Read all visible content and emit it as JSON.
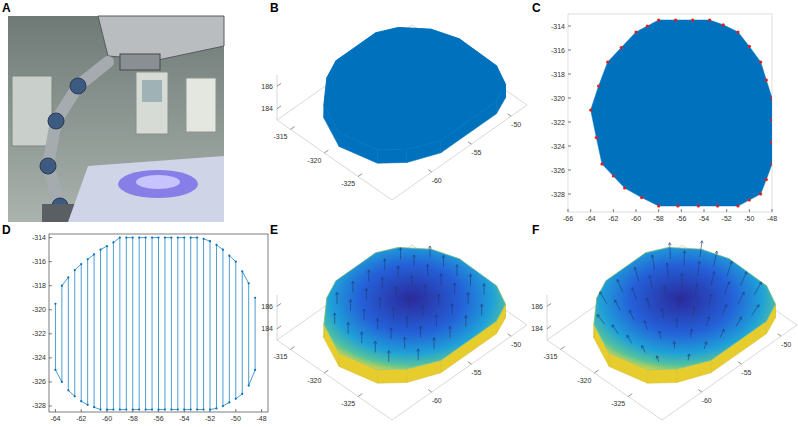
{
  "chart_data": [
    {
      "title": "A",
      "type": "image"
    },
    {
      "title": "B",
      "type": "surface",
      "color": "#0072bd",
      "xlim": [
        -65,
        -48
      ],
      "ylim": [
        -330,
        -313
      ],
      "zlim": [
        183,
        187
      ],
      "xticks": [
        -60,
        -55,
        -50
      ],
      "yticks": [
        -325,
        -320,
        -315
      ],
      "zticks": [
        184,
        186
      ],
      "x": [
        -58,
        -53,
        -51,
        -49,
        -48,
        -48,
        -49,
        -51,
        -58,
        -61,
        -63,
        -64,
        -62.5,
        -60
      ],
      "y": [
        -313.5,
        -313.5,
        -314.5,
        -317,
        -320,
        -325.5,
        -328,
        -329,
        -329,
        -327.5,
        -325.5,
        -321,
        -317,
        -314.5
      ],
      "z": [
        185,
        185,
        184.9,
        184.8,
        184.7,
        184.6,
        184.5,
        184.4,
        184.4,
        184.5,
        184.6,
        184.7,
        184.8,
        184.9
      ],
      "z_bottom": [
        183.8,
        183.8,
        183.7,
        183.6,
        183.5,
        183.4,
        183.3,
        183.3,
        183.3,
        183.3,
        183.4,
        183.5,
        183.6,
        183.7
      ]
    },
    {
      "title": "C",
      "type": "scatter",
      "xlim": [
        -66,
        -48
      ],
      "ylim": [
        -329.5,
        -313
      ],
      "xticks": [
        -66,
        -64,
        -62,
        -60,
        -58,
        -56,
        -54,
        -52,
        -50,
        -48
      ],
      "yticks": [
        -328,
        -326,
        -324,
        -322,
        -320,
        -318,
        -316,
        -314
      ],
      "series": [
        {
          "type": "area",
          "color": "#0072bd",
          "x": [
            -58,
            -56.5,
            -55,
            -53.5,
            -52.3,
            -51,
            -50,
            -49,
            -48.5,
            -48,
            -48,
            -48,
            -48,
            -48.5,
            -49,
            -50,
            -51,
            -52.8,
            -54.5,
            -56.3,
            -58,
            -59.5,
            -61,
            -62,
            -63,
            -63.5,
            -64,
            -63.3,
            -62.5,
            -61.3,
            -60,
            -59
          ],
          "y": [
            -313.5,
            -313.5,
            -313.5,
            -313.5,
            -313.9,
            -314.5,
            -315.7,
            -317,
            -318.5,
            -320,
            -321.8,
            -323.7,
            -325.5,
            -326.8,
            -328,
            -328.5,
            -329,
            -329,
            -329,
            -329,
            -329,
            -328.3,
            -327.5,
            -326.5,
            -325.5,
            -323.3,
            -321,
            -319,
            -317,
            -315.8,
            -314.5,
            -314
          ]
        },
        {
          "type": "scatter",
          "color": "#e0201b",
          "marker": "dot",
          "x": [
            -58,
            -56.5,
            -55,
            -53.5,
            -52.3,
            -51,
            -50,
            -49,
            -48.5,
            -48,
            -48,
            -48,
            -48,
            -48.5,
            -49,
            -50,
            -51,
            -52.8,
            -54.5,
            -56.3,
            -58,
            -59.5,
            -61,
            -62,
            -63,
            -63.5,
            -64,
            -63.3,
            -62.5,
            -61.3,
            -60,
            -59
          ],
          "y": [
            -313.5,
            -313.5,
            -313.5,
            -313.5,
            -313.9,
            -314.5,
            -315.7,
            -317,
            -318.5,
            -320,
            -321.8,
            -323.7,
            -325.5,
            -326.8,
            -328,
            -328.5,
            -329,
            -329,
            -329,
            -329,
            -329,
            -328.3,
            -327.5,
            -326.5,
            -325.5,
            -323.3,
            -321,
            -319,
            -317,
            -315.8,
            -314.5,
            -314
          ]
        }
      ]
    },
    {
      "title": "D",
      "type": "line",
      "color": "#0072bd",
      "marker": "dot",
      "xlim": [
        -64.5,
        -47.5
      ],
      "ylim": [
        -328.5,
        -313.7
      ],
      "xticks": [
        -64,
        -62,
        -60,
        -58,
        -56,
        -54,
        -52,
        -50,
        -48
      ],
      "yticks": [
        -328,
        -326,
        -324,
        -322,
        -320,
        -318,
        -316,
        -314
      ],
      "x": [
        -64,
        -64,
        -63.5,
        -63.5,
        -63,
        -63,
        -62.5,
        -62.5,
        -62,
        -62,
        -61.5,
        -61.5,
        -61,
        -61,
        -60.5,
        -60.5,
        -60,
        -60,
        -59.5,
        -59.5,
        -59,
        -59,
        -58.5,
        -58.5,
        -58,
        -58,
        -57.5,
        -57.5,
        -57,
        -57,
        -56.5,
        -56.5,
        -56,
        -56,
        -55.5,
        -55.5,
        -55,
        -55,
        -54.5,
        -54.5,
        -54,
        -54,
        -53.5,
        -53.5,
        -53,
        -53,
        -52.5,
        -52.5,
        -52,
        -52,
        -51.5,
        -51.5,
        -51,
        -51,
        -50.5,
        -50.5,
        -50,
        -50,
        -49.5,
        -49.5,
        -49,
        -49,
        -48.5,
        -48.5
      ],
      "y": [
        -319.5,
        -325,
        -326,
        -318,
        -317.3,
        -326.7,
        -327.2,
        -316.7,
        -316.2,
        -327.6,
        -327.9,
        -315.8,
        -315.4,
        -328.1,
        -328.3,
        -315,
        -314.7,
        -328.3,
        -328.3,
        -314.4,
        -314,
        -328.3,
        -328.3,
        -314,
        -314,
        -328.3,
        -328.3,
        -314,
        -314,
        -328.3,
        -328.3,
        -314,
        -314,
        -328.3,
        -328.3,
        -314,
        -314,
        -328.3,
        -328.3,
        -314,
        -314,
        -328.3,
        -328.3,
        -314,
        -314,
        -328.3,
        -328.3,
        -314.1,
        -314.3,
        -328.3,
        -328.2,
        -314.6,
        -315,
        -328,
        -327.7,
        -315.5,
        -316,
        -327.4,
        -327,
        -316.8,
        -317.8,
        -326.3,
        -325,
        -319
      ]
    },
    {
      "title": "E",
      "type": "quiver",
      "color": "#1f3a7a",
      "xlim": [
        -65,
        -48
      ],
      "ylim": [
        -330,
        -313
      ],
      "zlim": [
        183,
        187
      ],
      "xticks": [
        -60,
        -55,
        -50
      ],
      "yticks": [
        -325,
        -320,
        -315
      ],
      "zticks": [
        184,
        186
      ],
      "x": [
        -58,
        -53,
        -51,
        -49,
        -48,
        -48,
        -49,
        -51,
        -58,
        -61,
        -63,
        -64,
        -62.5,
        -60
      ],
      "y": [
        -313.5,
        -313.5,
        -314.5,
        -317,
        -320,
        -325.5,
        -328,
        -329,
        -329,
        -327.5,
        -325.5,
        -321,
        -317,
        -314.5
      ],
      "z": [
        185,
        185,
        184.9,
        184.8,
        184.7,
        184.6,
        184.5,
        184.4,
        184.4,
        184.5,
        184.6,
        184.7,
        184.8,
        184.9
      ],
      "z_bottom": [
        183.8,
        183.8,
        183.7,
        183.6,
        183.5,
        183.4,
        183.3,
        183.3,
        183.3,
        183.3,
        183.4,
        183.5,
        183.6,
        183.7
      ],
      "arrows": {
        "x": [
          -60,
          -58,
          -56,
          -54,
          -52,
          -62,
          -60,
          -58,
          -56,
          -54,
          -52,
          -50,
          -62,
          -60,
          -58,
          -56,
          -54,
          -52,
          -50,
          -62,
          -60,
          -58,
          -56,
          -54,
          -52,
          -50,
          -62,
          -60,
          -58,
          -56,
          -54,
          -52,
          -50,
          -62,
          -60,
          -58,
          -56,
          -54,
          -52,
          -50,
          -60,
          -58,
          -56,
          -54,
          -52
        ],
        "y": [
          -316,
          -316,
          -316,
          -316,
          -316,
          -318,
          -318,
          -318,
          -318,
          -318,
          -318,
          -318,
          -320,
          -320,
          -320,
          -320,
          -320,
          -320,
          -320,
          -322,
          -322,
          -322,
          -322,
          -322,
          -322,
          -322,
          -324,
          -324,
          -324,
          -324,
          -324,
          -324,
          -324,
          -326,
          -326,
          -326,
          -326,
          -326,
          -326,
          -326,
          -328,
          -328,
          -328,
          -328,
          -328
        ],
        "z": [
          185,
          185,
          185,
          185,
          185,
          185,
          185.2,
          185.2,
          185.2,
          185.2,
          185.2,
          185,
          185,
          185.2,
          185.2,
          185.2,
          185.2,
          185.2,
          185,
          185,
          185.2,
          185.2,
          185.2,
          185.2,
          185.2,
          185,
          185,
          185.2,
          185.2,
          185.2,
          185.2,
          185.2,
          185,
          185,
          185.2,
          185.2,
          185.2,
          185.2,
          185.2,
          185,
          185,
          185,
          185,
          185,
          185
        ],
        "u": [
          0,
          0,
          0,
          0,
          0,
          0,
          0,
          0,
          0,
          0,
          0,
          0,
          0,
          0,
          0,
          0,
          0,
          0,
          0,
          0,
          0,
          0,
          0,
          0,
          0,
          0,
          0,
          0,
          0,
          0,
          0,
          0,
          0,
          0,
          0,
          0,
          0,
          0,
          0,
          0,
          0,
          0,
          0,
          0,
          0
        ],
        "v": [
          0,
          0,
          0,
          0,
          0,
          0,
          0,
          0,
          0,
          0,
          0,
          0,
          0,
          0,
          0,
          0,
          0,
          0,
          0,
          0,
          0,
          0,
          0,
          0,
          0,
          0,
          0,
          0,
          0,
          0,
          0,
          0,
          0,
          0,
          0,
          0,
          0,
          0,
          0,
          0,
          0,
          0,
          0,
          0,
          0
        ],
        "w": [
          1,
          1,
          1,
          1,
          1,
          1,
          1,
          1,
          1,
          1,
          1,
          1,
          1,
          1,
          1,
          1,
          1,
          1,
          1,
          1,
          1,
          1,
          1,
          1,
          1,
          1,
          1,
          1,
          1,
          1,
          1,
          1,
          1,
          1,
          1,
          1,
          1,
          1,
          1,
          1,
          1,
          1,
          1,
          1,
          1
        ]
      }
    },
    {
      "title": "F",
      "type": "quiver",
      "color": "#1f3a7a",
      "xlim": [
        -65,
        -48
      ],
      "ylim": [
        -330,
        -313
      ],
      "zlim": [
        183,
        187
      ],
      "xticks": [
        -60,
        -55,
        -50
      ],
      "yticks": [
        -325,
        -320,
        -315
      ],
      "zticks": [
        184,
        186
      ],
      "x": [
        -58,
        -53,
        -51,
        -49,
        -48,
        -48,
        -49,
        -51,
        -58,
        -61,
        -63,
        -64,
        -62.5,
        -60
      ],
      "y": [
        -313.5,
        -313.5,
        -314.5,
        -317,
        -320,
        -325.5,
        -328,
        -329,
        -329,
        -327.5,
        -325.5,
        -321,
        -317,
        -314.5
      ],
      "z": [
        185,
        185,
        184.9,
        184.8,
        184.7,
        184.6,
        184.5,
        184.4,
        184.4,
        184.5,
        184.6,
        184.7,
        184.8,
        184.9
      ],
      "z_bottom": [
        183.8,
        183.8,
        183.7,
        183.6,
        183.5,
        183.4,
        183.3,
        183.3,
        183.3,
        183.3,
        183.4,
        183.5,
        183.6,
        183.7
      ],
      "arrows": {
        "x": [
          -60,
          -58,
          -56,
          -54,
          -52,
          -62,
          -60,
          -58,
          -56,
          -54,
          -52,
          -50,
          -62,
          -60,
          -58,
          -56,
          -54,
          -52,
          -50,
          -62,
          -60,
          -58,
          -56,
          -54,
          -52,
          -50,
          -62,
          -60,
          -58,
          -56,
          -54,
          -52,
          -50,
          -62,
          -60,
          -58,
          -56,
          -54,
          -52,
          -50,
          -60,
          -58,
          -56,
          -54,
          -52
        ],
        "y": [
          -316,
          -316,
          -316,
          -316,
          -316,
          -318,
          -318,
          -318,
          -318,
          -318,
          -318,
          -318,
          -320,
          -320,
          -320,
          -320,
          -320,
          -320,
          -320,
          -322,
          -322,
          -322,
          -322,
          -322,
          -322,
          -322,
          -324,
          -324,
          -324,
          -324,
          -324,
          -324,
          -324,
          -326,
          -326,
          -326,
          -326,
          -326,
          -326,
          -326,
          -328,
          -328,
          -328,
          -328,
          -328
        ],
        "z": [
          185,
          185,
          185,
          185,
          185,
          185,
          185.2,
          185.2,
          185.2,
          185.2,
          185.2,
          185,
          185,
          185.2,
          185.2,
          185.2,
          185.2,
          185.2,
          185,
          185,
          185.2,
          185.2,
          185.2,
          185.2,
          185.2,
          185,
          185,
          185.2,
          185.2,
          185.2,
          185.2,
          185.2,
          185,
          185,
          185.2,
          185.2,
          185.2,
          185.2,
          185.2,
          185,
          185,
          185,
          185,
          185,
          185
        ],
        "u": [
          -0.4,
          -0.2,
          0,
          0.2,
          0.4,
          -0.6,
          -0.4,
          -0.2,
          0,
          0.2,
          0.4,
          0.6,
          -0.6,
          -0.4,
          -0.2,
          0,
          0.2,
          0.4,
          0.6,
          -0.6,
          -0.4,
          -0.2,
          0,
          0.2,
          0.4,
          0.6,
          -0.6,
          -0.4,
          -0.2,
          0,
          0.2,
          0.4,
          0.6,
          -0.6,
          -0.4,
          -0.2,
          0,
          0.2,
          0.4,
          0.6,
          -0.4,
          -0.2,
          0,
          0.2,
          0.4
        ],
        "v": [
          0.6,
          0.6,
          0.6,
          0.6,
          0.6,
          0.4,
          0.4,
          0.4,
          0.4,
          0.4,
          0.4,
          0.4,
          0.2,
          0.2,
          0.2,
          0.2,
          0.2,
          0.2,
          0.2,
          0,
          0,
          0,
          0,
          0,
          0,
          0,
          -0.2,
          -0.2,
          -0.2,
          -0.2,
          -0.2,
          -0.2,
          -0.2,
          -0.4,
          -0.4,
          -0.4,
          -0.4,
          -0.4,
          -0.4,
          -0.4,
          -0.6,
          -0.6,
          -0.6,
          -0.6,
          -0.6
        ],
        "w": [
          1,
          1,
          1,
          1,
          1,
          1,
          1,
          1,
          1,
          1,
          1,
          1,
          1,
          1,
          1,
          1,
          1,
          1,
          1,
          1,
          1,
          1,
          1,
          1,
          1,
          1,
          1,
          1,
          1,
          1,
          1,
          1,
          1,
          1,
          1,
          1,
          1,
          1,
          1,
          1,
          1,
          1,
          1,
          1,
          1
        ]
      }
    }
  ]
}
